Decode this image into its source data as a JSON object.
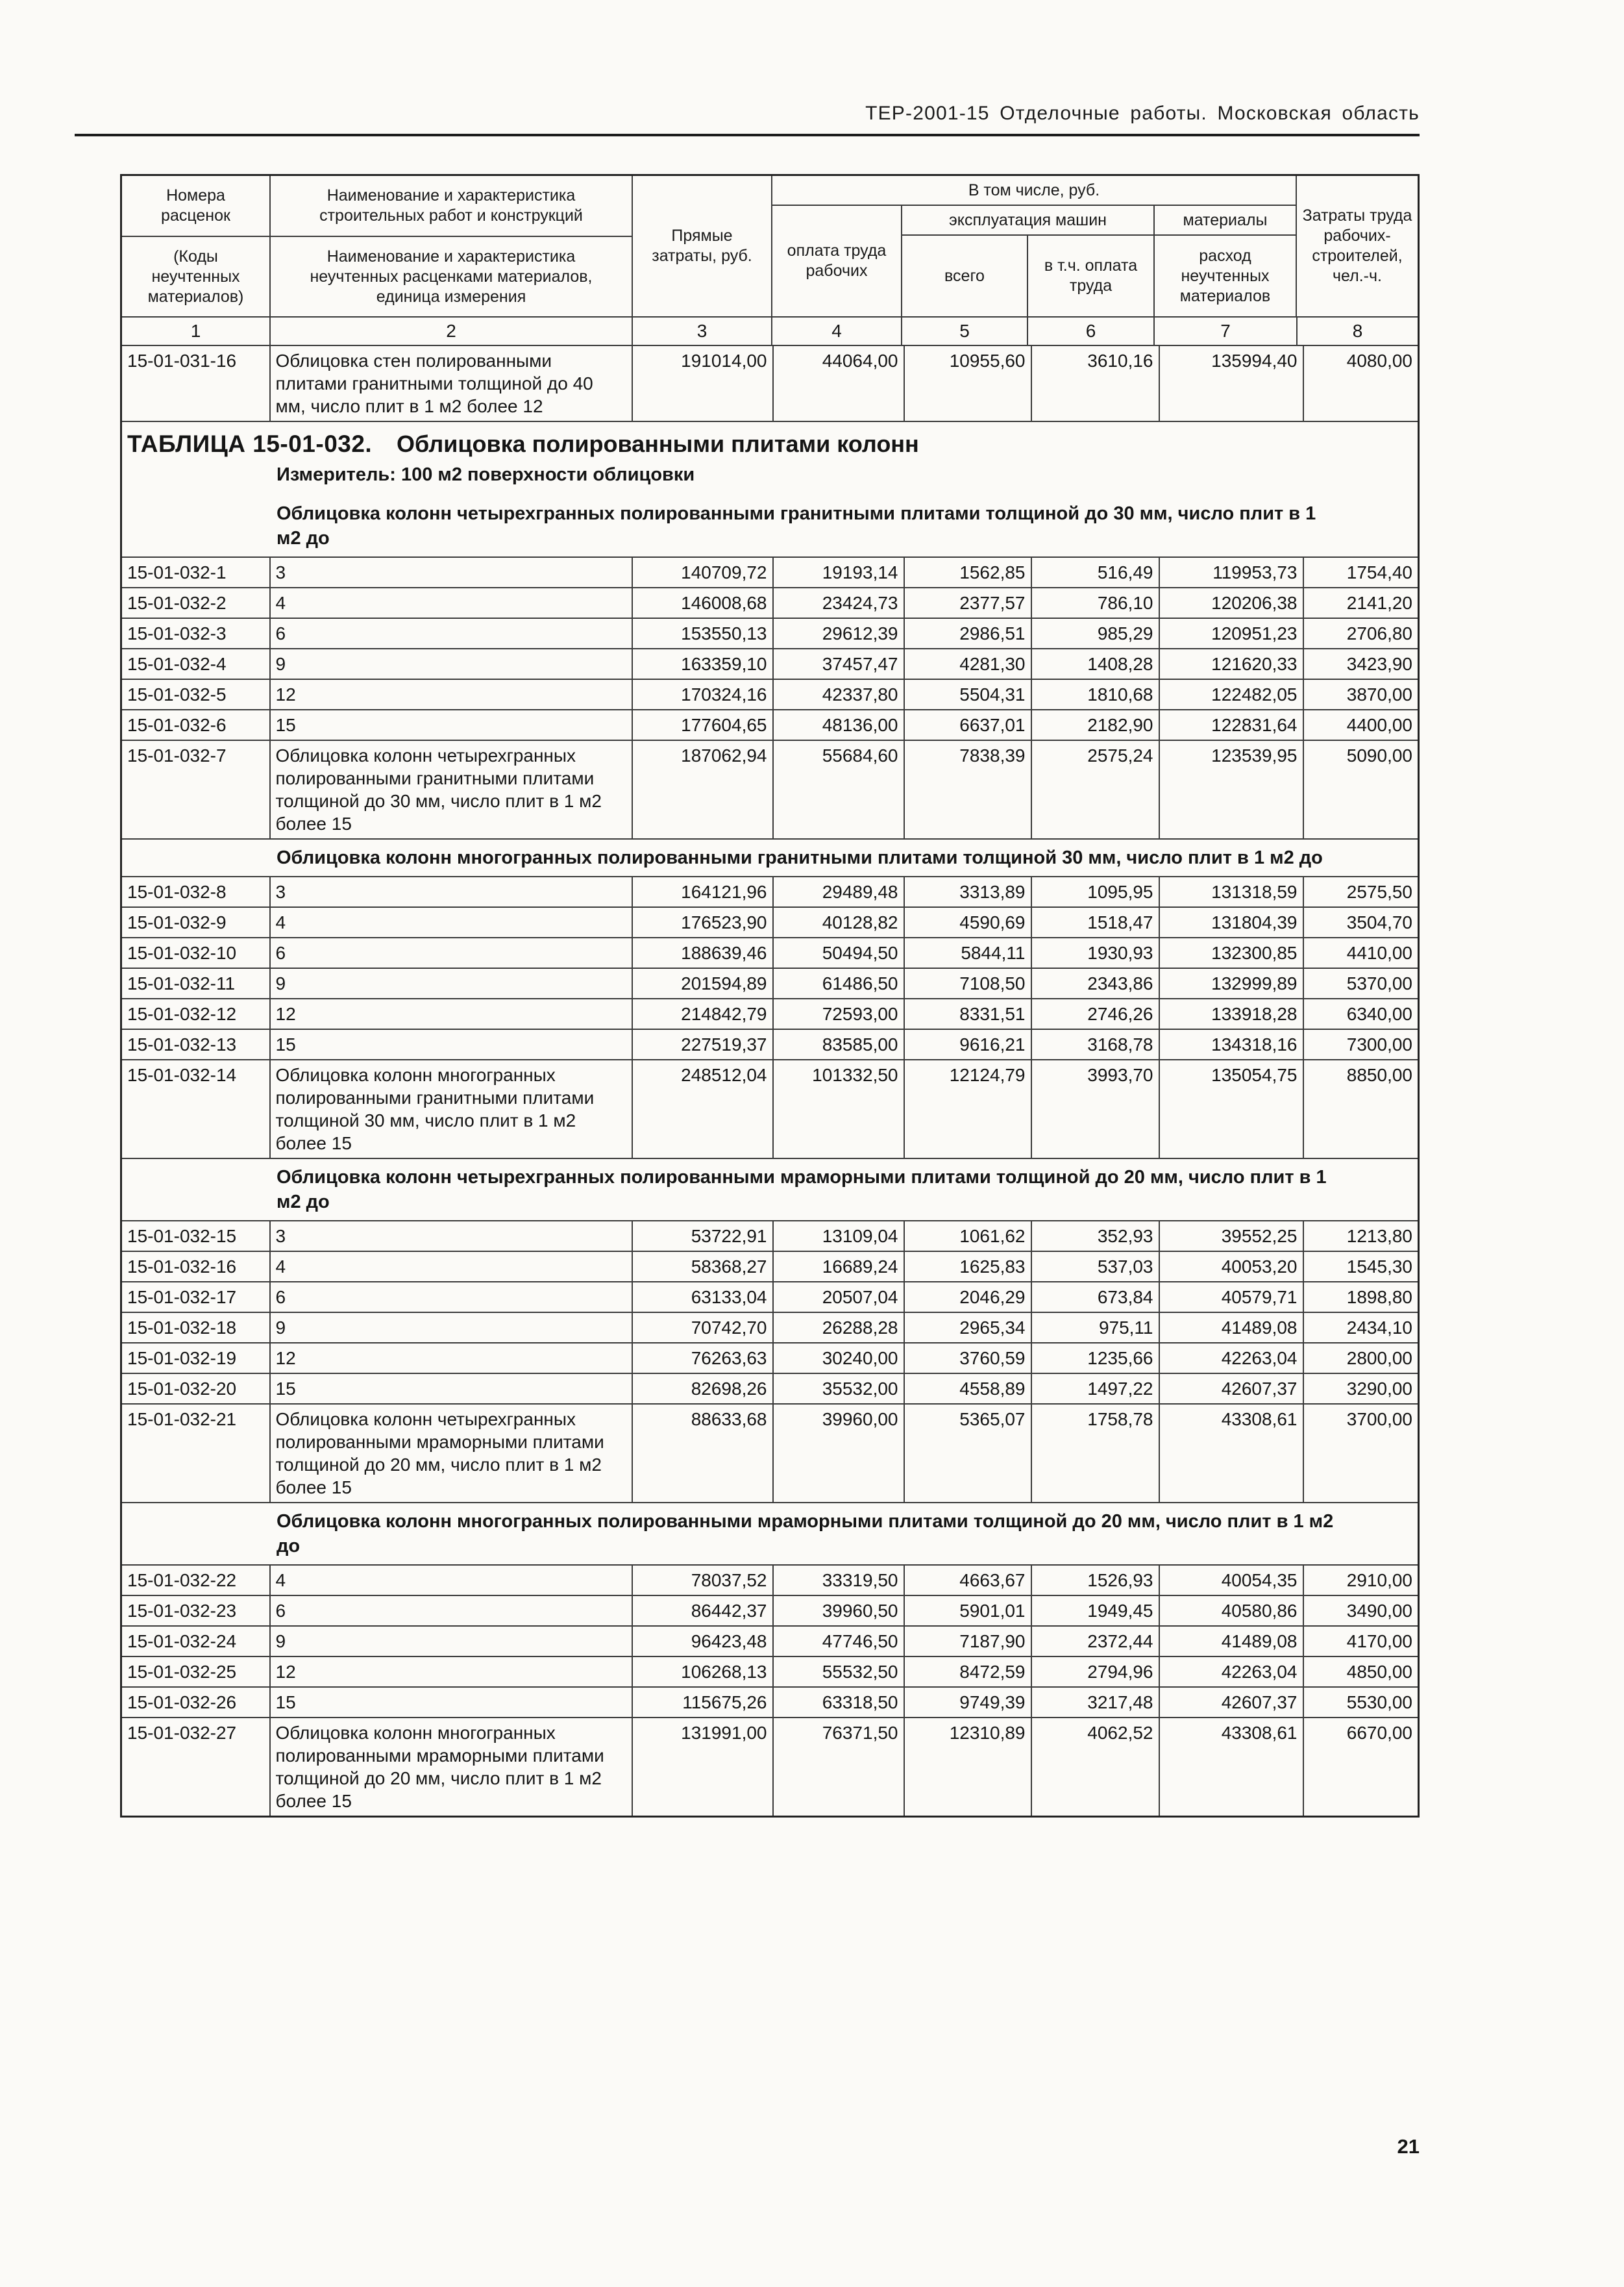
{
  "doc_header": "ТЕР-2001-15 Отделочные работы. Московская область",
  "page_number": "21",
  "header": {
    "c1a": "Номера расценок",
    "c1b": "(Коды неучтенных материалов)",
    "c2a": "Наименование и характеристика строительных работ и конструкций",
    "c2b": "Наименование и характеристика неучтенных расценками материалов, единица измерения",
    "c3": "Прямые затраты, руб.",
    "group": "В том числе, руб.",
    "c4": "оплата труда рабочих",
    "machines": "эксплуатация машин",
    "c5": "всего",
    "c6": "в т.ч. оплата труда",
    "materials": "материалы",
    "c7": "расход неучтенных материалов",
    "c8": "Затраты труда рабочих-строителей, чел.-ч.",
    "nums": [
      "1",
      "2",
      "3",
      "4",
      "5",
      "6",
      "7",
      "8"
    ]
  },
  "intro_row": {
    "code": "15-01-031-16",
    "desc": "Облицовка стен полированными плитами гранитными толщиной до 40 мм, число плит в 1 м2 более 12",
    "values": [
      "191014,00",
      "44064,00",
      "10955,60",
      "3610,16",
      "135994,40",
      "4080,00"
    ]
  },
  "table_title": {
    "number": "ТАБЛИЦА 15-01-032.",
    "text": "Облицовка полированными плитами колонн"
  },
  "meter": "Измеритель: 100 м2 поверхности облицовки",
  "sections": [
    {
      "title": "Облицовка колонн четырехгранных полированными гранитными плитами толщиной до 30 мм, число плит в 1 м2 до",
      "rows": [
        {
          "code": "15-01-032-1",
          "desc": "3",
          "values": [
            "140709,72",
            "19193,14",
            "1562,85",
            "516,49",
            "119953,73",
            "1754,40"
          ]
        },
        {
          "code": "15-01-032-2",
          "desc": "4",
          "values": [
            "146008,68",
            "23424,73",
            "2377,57",
            "786,10",
            "120206,38",
            "2141,20"
          ]
        },
        {
          "code": "15-01-032-3",
          "desc": "6",
          "values": [
            "153550,13",
            "29612,39",
            "2986,51",
            "985,29",
            "120951,23",
            "2706,80"
          ]
        },
        {
          "code": "15-01-032-4",
          "desc": "9",
          "values": [
            "163359,10",
            "37457,47",
            "4281,30",
            "1408,28",
            "121620,33",
            "3423,90"
          ]
        },
        {
          "code": "15-01-032-5",
          "desc": "12",
          "values": [
            "170324,16",
            "42337,80",
            "5504,31",
            "1810,68",
            "122482,05",
            "3870,00"
          ]
        },
        {
          "code": "15-01-032-6",
          "desc": "15",
          "values": [
            "177604,65",
            "48136,00",
            "6637,01",
            "2182,90",
            "122831,64",
            "4400,00"
          ]
        },
        {
          "code": "15-01-032-7",
          "desc": "Облицовка колонн четырехгранных полированными гранитными плитами толщиной до 30 мм, число плит в 1 м2 более 15",
          "values": [
            "187062,94",
            "55684,60",
            "7838,39",
            "2575,24",
            "123539,95",
            "5090,00"
          ]
        }
      ]
    },
    {
      "title": "Облицовка колонн многогранных полированными гранитными плитами толщиной 30 мм, число плит в 1 м2 до",
      "rows": [
        {
          "code": "15-01-032-8",
          "desc": "3",
          "values": [
            "164121,96",
            "29489,48",
            "3313,89",
            "1095,95",
            "131318,59",
            "2575,50"
          ]
        },
        {
          "code": "15-01-032-9",
          "desc": "4",
          "values": [
            "176523,90",
            "40128,82",
            "4590,69",
            "1518,47",
            "131804,39",
            "3504,70"
          ]
        },
        {
          "code": "15-01-032-10",
          "desc": "6",
          "values": [
            "188639,46",
            "50494,50",
            "5844,11",
            "1930,93",
            "132300,85",
            "4410,00"
          ]
        },
        {
          "code": "15-01-032-11",
          "desc": "9",
          "values": [
            "201594,89",
            "61486,50",
            "7108,50",
            "2343,86",
            "132999,89",
            "5370,00"
          ]
        },
        {
          "code": "15-01-032-12",
          "desc": "12",
          "values": [
            "214842,79",
            "72593,00",
            "8331,51",
            "2746,26",
            "133918,28",
            "6340,00"
          ]
        },
        {
          "code": "15-01-032-13",
          "desc": "15",
          "values": [
            "227519,37",
            "83585,00",
            "9616,21",
            "3168,78",
            "134318,16",
            "7300,00"
          ]
        },
        {
          "code": "15-01-032-14",
          "desc": "Облицовка колонн многогранных полированными гранитными плитами толщиной 30 мм, число плит в 1 м2 более 15",
          "values": [
            "248512,04",
            "101332,50",
            "12124,79",
            "3993,70",
            "135054,75",
            "8850,00"
          ]
        }
      ]
    },
    {
      "title": "Облицовка колонн четырехгранных полированными мраморными плитами толщиной до 20 мм, число плит в 1 м2 до",
      "rows": [
        {
          "code": "15-01-032-15",
          "desc": "3",
          "values": [
            "53722,91",
            "13109,04",
            "1061,62",
            "352,93",
            "39552,25",
            "1213,80"
          ]
        },
        {
          "code": "15-01-032-16",
          "desc": "4",
          "values": [
            "58368,27",
            "16689,24",
            "1625,83",
            "537,03",
            "40053,20",
            "1545,30"
          ]
        },
        {
          "code": "15-01-032-17",
          "desc": "6",
          "values": [
            "63133,04",
            "20507,04",
            "2046,29",
            "673,84",
            "40579,71",
            "1898,80"
          ]
        },
        {
          "code": "15-01-032-18",
          "desc": "9",
          "values": [
            "70742,70",
            "26288,28",
            "2965,34",
            "975,11",
            "41489,08",
            "2434,10"
          ]
        },
        {
          "code": "15-01-032-19",
          "desc": "12",
          "values": [
            "76263,63",
            "30240,00",
            "3760,59",
            "1235,66",
            "42263,04",
            "2800,00"
          ]
        },
        {
          "code": "15-01-032-20",
          "desc": "15",
          "values": [
            "82698,26",
            "35532,00",
            "4558,89",
            "1497,22",
            "42607,37",
            "3290,00"
          ]
        },
        {
          "code": "15-01-032-21",
          "desc": "Облицовка колонн четырехгранных полированными мраморными плитами толщиной до 20 мм, число плит в 1 м2 более 15",
          "values": [
            "88633,68",
            "39960,00",
            "5365,07",
            "1758,78",
            "43308,61",
            "3700,00"
          ]
        }
      ]
    },
    {
      "title": "Облицовка колонн многогранных полированными мраморными плитами толщиной до 20 мм, число плит в 1 м2 до",
      "rows": [
        {
          "code": "15-01-032-22",
          "desc": "4",
          "values": [
            "78037,52",
            "33319,50",
            "4663,67",
            "1526,93",
            "40054,35",
            "2910,00"
          ]
        },
        {
          "code": "15-01-032-23",
          "desc": "6",
          "values": [
            "86442,37",
            "39960,50",
            "5901,01",
            "1949,45",
            "40580,86",
            "3490,00"
          ]
        },
        {
          "code": "15-01-032-24",
          "desc": "9",
          "values": [
            "96423,48",
            "47746,50",
            "7187,90",
            "2372,44",
            "41489,08",
            "4170,00"
          ]
        },
        {
          "code": "15-01-032-25",
          "desc": "12",
          "values": [
            "106268,13",
            "55532,50",
            "8472,59",
            "2794,96",
            "42263,04",
            "4850,00"
          ]
        },
        {
          "code": "15-01-032-26",
          "desc": "15",
          "values": [
            "115675,26",
            "63318,50",
            "9749,39",
            "3217,48",
            "42607,37",
            "5530,00"
          ]
        },
        {
          "code": "15-01-032-27",
          "desc": "Облицовка колонн многогранных полированными мраморными плитами толщиной до 20 мм, число плит в 1 м2 более 15",
          "values": [
            "131991,00",
            "76371,50",
            "12310,89",
            "4062,52",
            "43308,61",
            "6670,00"
          ]
        }
      ]
    }
  ]
}
